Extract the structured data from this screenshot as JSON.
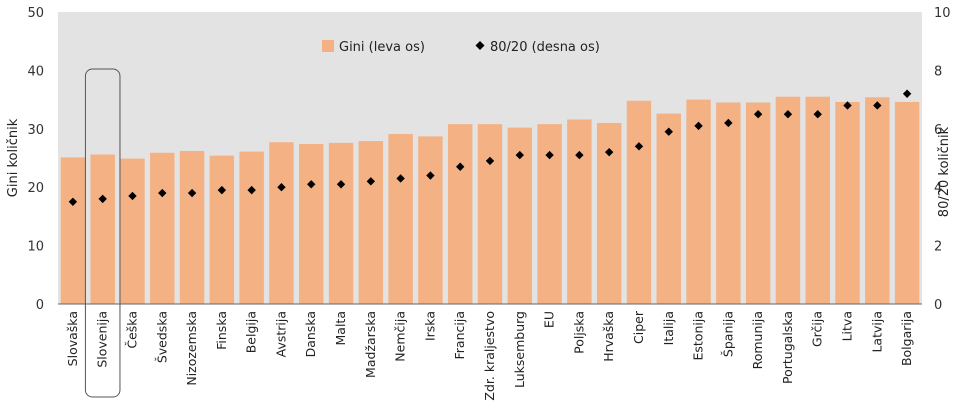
{
  "chart_data": {
    "type": "bar",
    "categories": [
      "Slovaška",
      "Slovenija",
      "Češka",
      "Švedska",
      "Nizozemska",
      "Finska",
      "Belgija",
      "Avstrija",
      "Danska",
      "Malta",
      "Madžarska",
      "Nemčija",
      "Irska",
      "Francija",
      "Zdr. kraljestvo",
      "Luksemburg",
      "EU",
      "Poljska",
      "Hrvaška",
      "Ciper",
      "Italija",
      "Estonija",
      "Španija",
      "Romunija",
      "Portugalska",
      "Grčija",
      "Litva",
      "Latvija",
      "Bolgarija"
    ],
    "series": [
      {
        "name": "Gini (leva os)",
        "type": "bar",
        "axis": "left",
        "color": "#f4b183",
        "values": [
          25.1,
          25.6,
          24.9,
          25.9,
          26.2,
          25.4,
          26.1,
          27.7,
          27.4,
          27.6,
          27.9,
          29.1,
          28.7,
          30.8,
          30.8,
          30.2,
          30.8,
          31.6,
          31.0,
          34.8,
          32.6,
          35.0,
          34.5,
          34.5,
          35.5,
          35.5,
          34.6,
          35.4,
          34.6
        ]
      },
      {
        "name": "80/20 (desna os)",
        "type": "scatter",
        "axis": "right",
        "color": "#000000",
        "values": [
          3.5,
          3.6,
          3.7,
          3.8,
          3.8,
          3.9,
          3.9,
          4.0,
          4.1,
          4.1,
          4.2,
          4.3,
          4.4,
          4.7,
          4.9,
          5.1,
          5.1,
          5.1,
          5.2,
          5.4,
          5.9,
          6.1,
          6.2,
          6.5,
          6.5,
          6.5,
          6.8,
          6.8,
          7.2
        ]
      }
    ],
    "ylabel": "Gini količnik",
    "y2label": "80/20 količnik",
    "ylim": [
      0,
      50
    ],
    "y2lim": [
      0,
      10
    ],
    "yticks": [
      0,
      10,
      20,
      30,
      40,
      50
    ],
    "y2ticks": [
      0,
      2,
      4,
      6,
      8,
      10
    ],
    "highlight": "Slovenija",
    "legend_position": "top-center",
    "grid": false
  }
}
